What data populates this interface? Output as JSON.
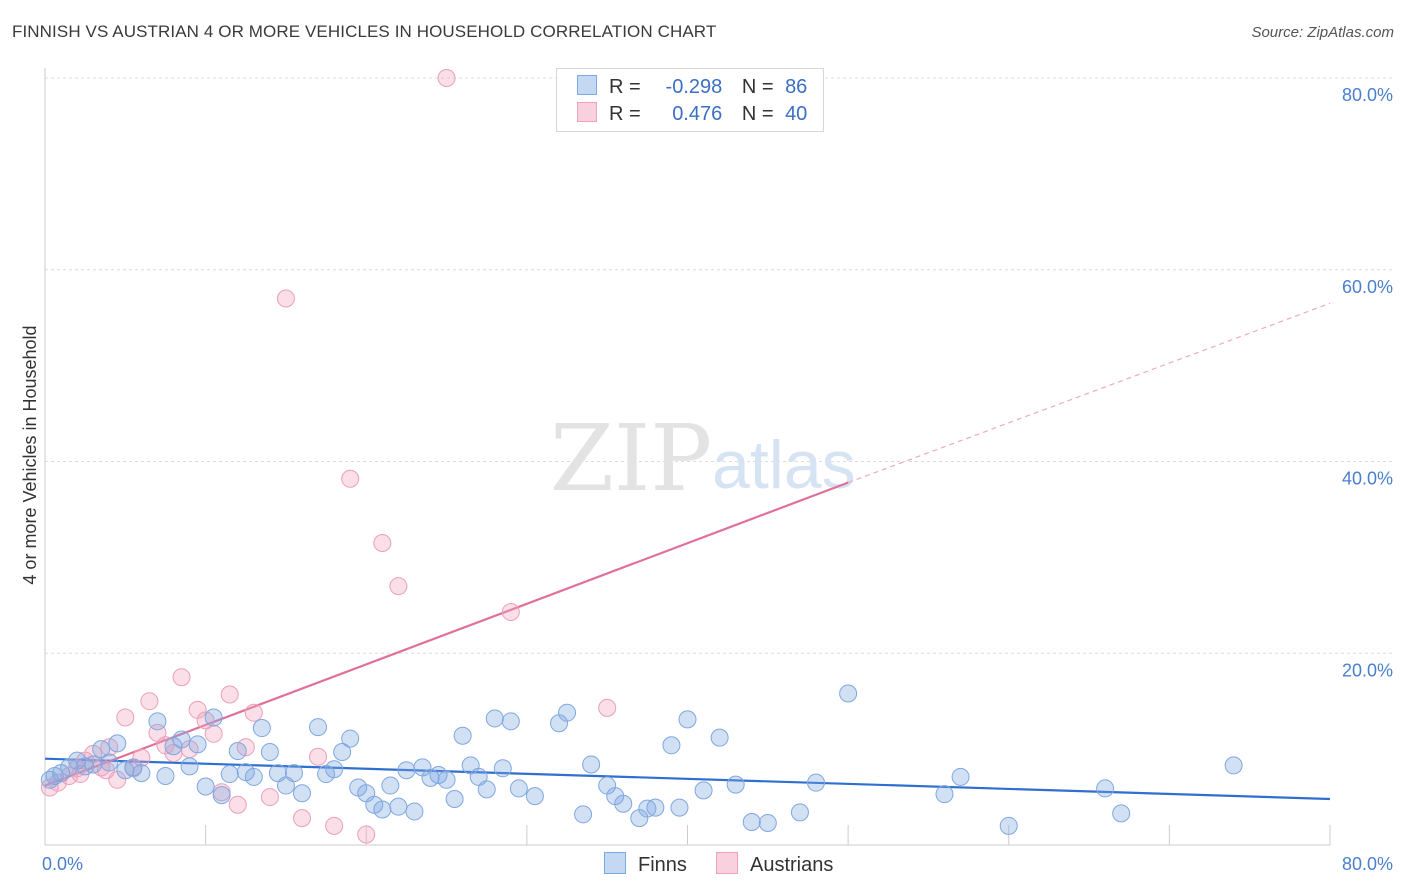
{
  "title": "FINNISH VS AUSTRIAN 4 OR MORE VEHICLES IN HOUSEHOLD CORRELATION CHART",
  "source": "Source: ZipAtlas.com",
  "watermark": {
    "zip": "ZIP",
    "atlas": "atlas"
  },
  "legend_top": {
    "finns": {
      "r_label": "R =",
      "r_value": "-0.298",
      "n_label": "N =",
      "n_value": "86"
    },
    "austrians": {
      "r_label": "R =",
      "r_value": "0.476",
      "n_label": "N =",
      "n_value": "40"
    }
  },
  "legend_bottom": {
    "finns": "Finns",
    "austrians": "Austrians"
  },
  "colors": {
    "finns": "#7fa7e0",
    "finns_line": "#2f6fcf",
    "austrians": "#f0a3bd",
    "austrians_line": "#e0709a",
    "axis_text": "#4a7fcf"
  },
  "chart_data": {
    "type": "scatter",
    "title": "FINNISH VS AUSTRIAN 4 OR MORE VEHICLES IN HOUSEHOLD CORRELATION CHART",
    "xlabel": "",
    "ylabel": "4 or more Vehicles in Household",
    "xlim": [
      0,
      80
    ],
    "ylim": [
      0,
      80
    ],
    "x_tick_labels": [
      "0.0%",
      "80.0%"
    ],
    "y_tick_labels": [
      "80.0%",
      "60.0%",
      "40.0%",
      "20.0%"
    ],
    "y_ticks": [
      80,
      60,
      40,
      20
    ],
    "grid": true,
    "legend_placement": "top-center",
    "series": [
      {
        "name": "Finns",
        "r": -0.298,
        "n": 86,
        "trend": {
          "x": [
            0,
            80
          ],
          "y": [
            9.0,
            4.8
          ]
        },
        "points": [
          [
            0.3,
            6.8
          ],
          [
            0.6,
            7.2
          ],
          [
            1,
            7.5
          ],
          [
            1.5,
            8.1
          ],
          [
            2,
            8.8
          ],
          [
            2.5,
            8.2
          ],
          [
            3,
            8.4
          ],
          [
            3.5,
            10
          ],
          [
            4,
            8.6
          ],
          [
            4.5,
            10.6
          ],
          [
            5,
            7.8
          ],
          [
            5.5,
            8.1
          ],
          [
            6,
            7.5
          ],
          [
            7,
            12.9
          ],
          [
            7.5,
            7.2
          ],
          [
            8,
            10.3
          ],
          [
            8.5,
            11
          ],
          [
            9,
            8.2
          ],
          [
            9.5,
            10.5
          ],
          [
            10,
            6.1
          ],
          [
            10.5,
            13.3
          ],
          [
            11,
            5.2
          ],
          [
            11.5,
            7.4
          ],
          [
            12,
            9.8
          ],
          [
            12.5,
            7.6
          ],
          [
            13,
            7.1
          ],
          [
            13.5,
            12.2
          ],
          [
            14,
            9.7
          ],
          [
            14.5,
            7.5
          ],
          [
            15,
            6.2
          ],
          [
            15.5,
            7.5
          ],
          [
            16,
            5.4
          ],
          [
            17,
            12.3
          ],
          [
            17.5,
            7.4
          ],
          [
            18,
            7.9
          ],
          [
            18.5,
            9.7
          ],
          [
            19,
            11.1
          ],
          [
            19.5,
            6.0
          ],
          [
            20,
            5.4
          ],
          [
            20.5,
            4.2
          ],
          [
            21,
            3.7
          ],
          [
            21.5,
            6.2
          ],
          [
            22,
            4.0
          ],
          [
            22.5,
            7.8
          ],
          [
            23,
            3.5
          ],
          [
            23.5,
            8.1
          ],
          [
            24,
            7.0
          ],
          [
            24.5,
            7.3
          ],
          [
            25,
            6.8
          ],
          [
            25.5,
            4.8
          ],
          [
            26,
            11.4
          ],
          [
            26.5,
            8.3
          ],
          [
            27,
            7.1
          ],
          [
            27.5,
            5.8
          ],
          [
            28,
            13.2
          ],
          [
            28.5,
            8.0
          ],
          [
            29,
            12.9
          ],
          [
            29.5,
            5.9
          ],
          [
            30.5,
            5.1
          ],
          [
            32,
            12.7
          ],
          [
            32.5,
            13.8
          ],
          [
            33.5,
            3.2
          ],
          [
            34,
            8.4
          ],
          [
            35,
            6.2
          ],
          [
            35.5,
            5.1
          ],
          [
            36,
            4.3
          ],
          [
            37,
            2.8
          ],
          [
            37.5,
            3.8
          ],
          [
            38,
            3.9
          ],
          [
            39,
            10.4
          ],
          [
            39.5,
            3.9
          ],
          [
            40,
            13.1
          ],
          [
            41,
            5.7
          ],
          [
            42,
            11.2
          ],
          [
            43,
            6.3
          ],
          [
            44,
            2.4
          ],
          [
            45,
            2.3
          ],
          [
            47,
            3.4
          ],
          [
            50,
            15.8
          ],
          [
            56,
            5.3
          ],
          [
            57,
            7.1
          ],
          [
            60,
            2.0
          ],
          [
            66,
            5.9
          ],
          [
            67,
            3.3
          ],
          [
            74,
            8.3
          ],
          [
            48,
            6.5
          ]
        ]
      },
      {
        "name": "Austrians",
        "r": 0.476,
        "n": 40,
        "trend": {
          "x": [
            0,
            50
          ],
          "y": [
            6.2,
            37.8
          ]
        },
        "trend_dashed": {
          "x": [
            50,
            80
          ],
          "y": [
            37.8,
            56.5
          ]
        },
        "points": [
          [
            0.3,
            6.0
          ],
          [
            0.8,
            6.5
          ],
          [
            1.5,
            7.2
          ],
          [
            2,
            8.0
          ],
          [
            2.5,
            8.8
          ],
          [
            3,
            9.5
          ],
          [
            3.5,
            8.1
          ],
          [
            4,
            10.2
          ],
          [
            4.5,
            6.8
          ],
          [
            5,
            13.3
          ],
          [
            5.5,
            8.0
          ],
          [
            6,
            9.1
          ],
          [
            6.5,
            15.0
          ],
          [
            7,
            11.7
          ],
          [
            7.5,
            10.4
          ],
          [
            8,
            9.6
          ],
          [
            8.5,
            17.5
          ],
          [
            9,
            10.0
          ],
          [
            9.5,
            14.1
          ],
          [
            10,
            13.0
          ],
          [
            10.5,
            11.6
          ],
          [
            11,
            5.5
          ],
          [
            11.5,
            15.7
          ],
          [
            12,
            4.2
          ],
          [
            12.5,
            10.2
          ],
          [
            13,
            13.8
          ],
          [
            14,
            5.0
          ],
          [
            15,
            57.0
          ],
          [
            16,
            2.8
          ],
          [
            17,
            9.2
          ],
          [
            18,
            2.0
          ],
          [
            19,
            38.2
          ],
          [
            20,
            1.1
          ],
          [
            21,
            31.5
          ],
          [
            22,
            27.0
          ],
          [
            25,
            80.0
          ],
          [
            29,
            24.3
          ],
          [
            35,
            14.3
          ],
          [
            3.8,
            7.8
          ],
          [
            2.2,
            7.4
          ]
        ]
      }
    ]
  }
}
